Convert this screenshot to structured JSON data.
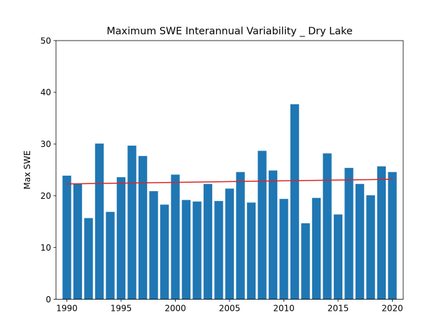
{
  "chart_data": {
    "type": "bar",
    "title": "Maximum SWE Interannual Variability _ Dry Lake",
    "xlabel": "",
    "ylabel": "Max SWE",
    "xlim": [
      1989,
      2021
    ],
    "ylim": [
      0,
      50
    ],
    "xticks": [
      1990,
      1995,
      2000,
      2005,
      2010,
      2015,
      2020
    ],
    "yticks": [
      0,
      10,
      20,
      30,
      40,
      50
    ],
    "bar_color": "#1f77b4",
    "trend_color": "#d62728",
    "x": [
      1990,
      1991,
      1992,
      1993,
      1994,
      1995,
      1996,
      1997,
      1998,
      1999,
      2000,
      2001,
      2002,
      2003,
      2004,
      2005,
      2006,
      2007,
      2008,
      2009,
      2010,
      2011,
      2012,
      2013,
      2014,
      2015,
      2016,
      2017,
      2018,
      2019,
      2020
    ],
    "values": [
      23.9,
      22.3,
      15.7,
      30.1,
      16.9,
      23.6,
      29.7,
      27.7,
      20.9,
      18.3,
      24.1,
      19.2,
      18.9,
      22.3,
      19.0,
      21.4,
      24.6,
      18.7,
      28.7,
      24.9,
      19.4,
      37.7,
      14.7,
      19.6,
      28.2,
      16.4,
      25.4,
      22.3,
      20.1,
      25.7,
      24.6
    ],
    "trend": {
      "x": [
        1990,
        2020
      ],
      "y": [
        22.3,
        23.2
      ]
    },
    "grid": false
  }
}
